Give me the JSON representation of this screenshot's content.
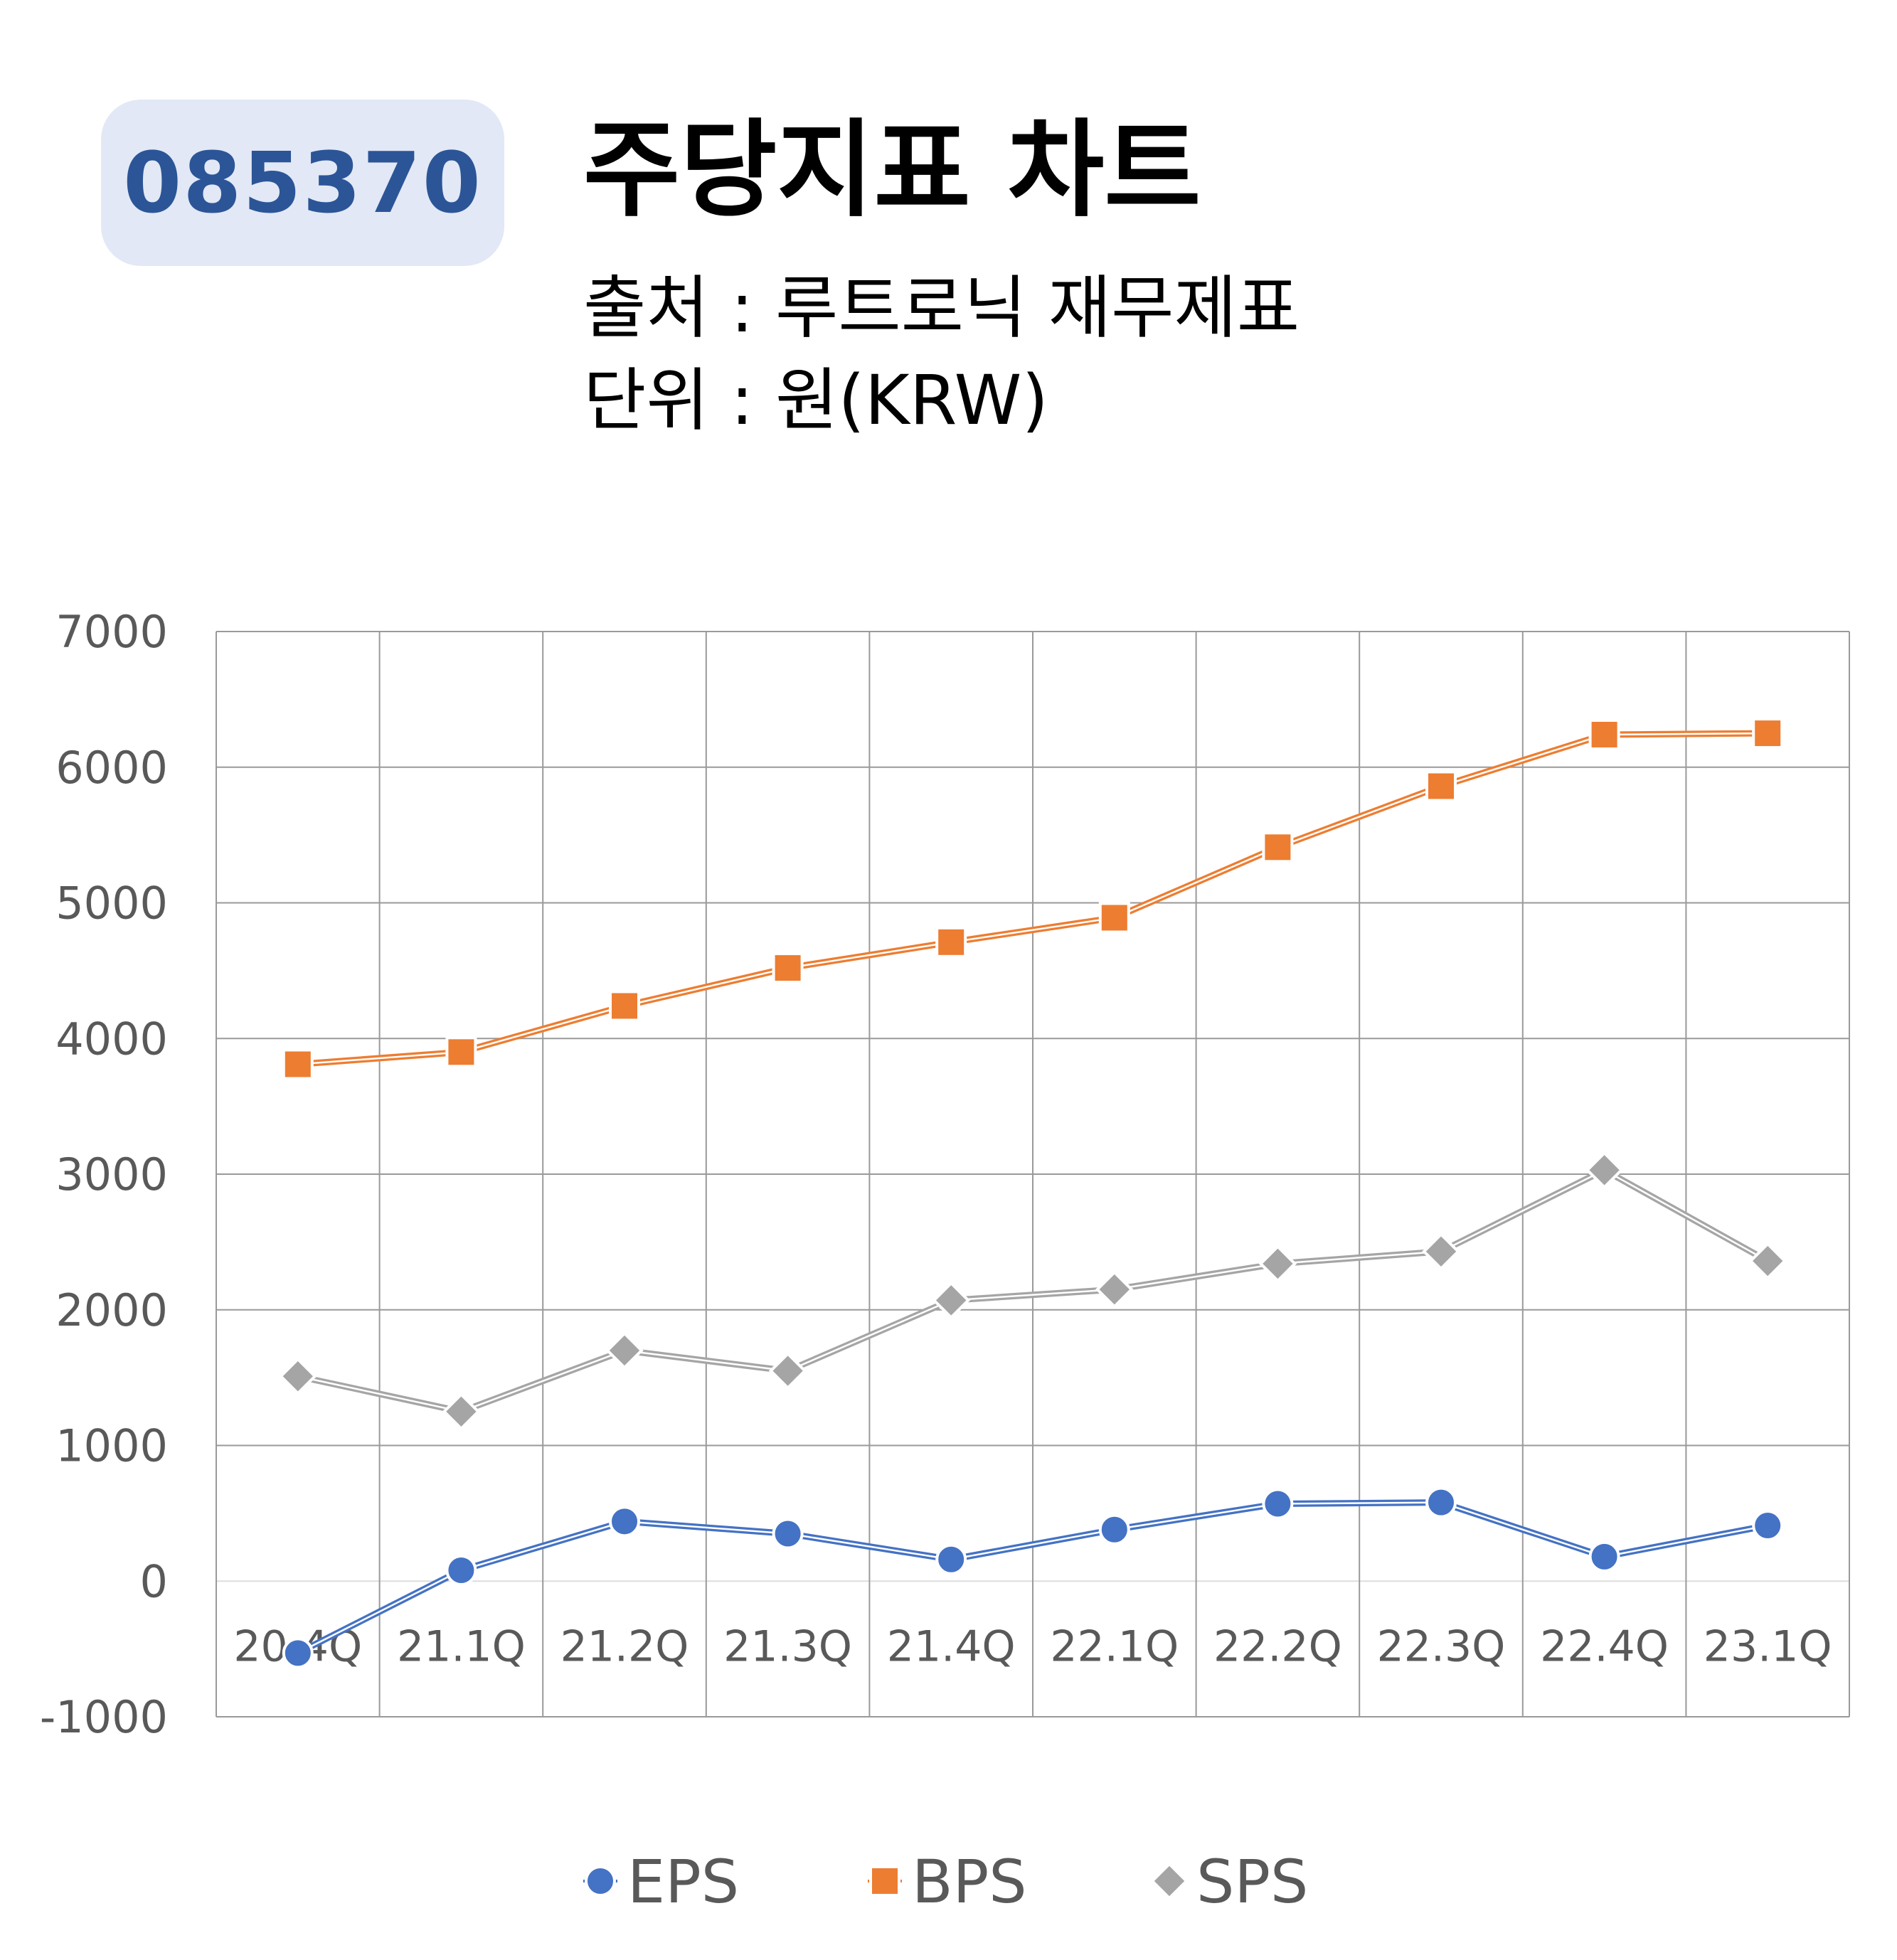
{
  "ticker": "085370",
  "title": "주당지표 차트",
  "source": "출처 : 루트로닉 재무제표",
  "unit": "단위 : 원(KRW)",
  "colors": {
    "eps": "#4472c4",
    "bps": "#ed7d31",
    "sps": "#a5a5a5",
    "badge_bg": "#e2e8f5",
    "badge_text": "#2b5597",
    "grid": "#9a9a9a",
    "tick_text": "#595959"
  },
  "chart_data": {
    "type": "line",
    "categories": [
      "20.4Q",
      "21.1Q",
      "21.2Q",
      "21.3Q",
      "21.4Q",
      "22.1Q",
      "22.2Q",
      "22.3Q",
      "22.4Q",
      "23.1Q"
    ],
    "series": [
      {
        "name": "EPS",
        "marker": "circle",
        "values": [
          -530,
          80,
          440,
          350,
          160,
          380,
          570,
          580,
          180,
          410
        ]
      },
      {
        "name": "BPS",
        "marker": "square",
        "values": [
          3810,
          3900,
          4240,
          4520,
          4710,
          4890,
          5410,
          5860,
          6240,
          6250
        ]
      },
      {
        "name": "SPS",
        "marker": "diamond",
        "values": [
          1510,
          1250,
          1700,
          1550,
          2070,
          2150,
          2340,
          2430,
          3030,
          2360
        ]
      }
    ],
    "ylim": [
      -1000,
      7000
    ],
    "yticks": [
      "7000",
      "6000",
      "5000",
      "4000",
      "3000",
      "2000",
      "1000",
      "0",
      "-1000"
    ],
    "grid": true,
    "legend_position": "bottom-center",
    "title": "",
    "xlabel": "",
    "ylabel": ""
  }
}
